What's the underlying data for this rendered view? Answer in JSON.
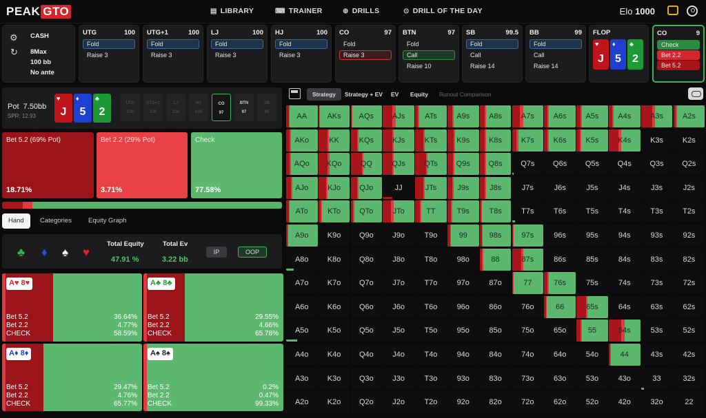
{
  "nav": {
    "logo_a": "PEAK",
    "logo_b": "GTO",
    "links": [
      "LIBRARY",
      "TRAINER",
      "DRILLS",
      "DRILL OF THE DAY"
    ],
    "elo_label": "Elo",
    "elo_value": "1000"
  },
  "game_info": {
    "type": "CASH",
    "players": "8Max",
    "stack": "100 bb",
    "ante": "No ante"
  },
  "positions": [
    {
      "name": "UTG",
      "stack": "100",
      "actions": [
        "Fold",
        "Raise 3"
      ],
      "selected": 0,
      "sel_style": "blue"
    },
    {
      "name": "UTG+1",
      "stack": "100",
      "actions": [
        "Fold",
        "Raise 3"
      ],
      "selected": 0,
      "sel_style": "blue"
    },
    {
      "name": "LJ",
      "stack": "100",
      "actions": [
        "Fold",
        "Raise 3"
      ],
      "selected": 0,
      "sel_style": "blue"
    },
    {
      "name": "HJ",
      "stack": "100",
      "actions": [
        "Fold",
        "Raise 3"
      ],
      "selected": 0,
      "sel_style": "blue"
    },
    {
      "name": "CO",
      "stack": "97",
      "actions": [
        "Fold",
        "Raise 3"
      ],
      "selected": 1,
      "sel_style": "red"
    },
    {
      "name": "BTN",
      "stack": "97",
      "actions": [
        "Fold",
        "Call",
        "Raise 10"
      ],
      "selected": 1,
      "sel_style": "green"
    },
    {
      "name": "SB",
      "stack": "99.5",
      "actions": [
        "Fold",
        "Call",
        "Raise 14"
      ],
      "selected": 0,
      "sel_style": "blue"
    },
    {
      "name": "BB",
      "stack": "99",
      "actions": [
        "Fold",
        "Call",
        "Raise 14"
      ],
      "selected": 0,
      "sel_style": "blue"
    }
  ],
  "flop": {
    "label": "FLOP",
    "cards": [
      {
        "rank": "J",
        "suit": "♥",
        "color": "#c0141c"
      },
      {
        "rank": "5",
        "suit": "♦",
        "color": "#1f3fd0"
      },
      {
        "rank": "2",
        "suit": "♣",
        "color": "#1d9a36"
      }
    ]
  },
  "co_active": {
    "name": "CO",
    "stack": "9",
    "actions": [
      "Check",
      "Bet 2.2",
      "Bet 5.2"
    ]
  },
  "pot": {
    "label": "Pot",
    "value": "7.50bb",
    "spr": "SPR: 12.93"
  },
  "seats": [
    {
      "name": "UTG",
      "stack": "100",
      "state": "dim"
    },
    {
      "name": "UTG+1",
      "stack": "100",
      "state": "dim"
    },
    {
      "name": "LJ",
      "stack": "100",
      "state": "dim"
    },
    {
      "name": "HJ",
      "stack": "100",
      "state": "dim"
    },
    {
      "name": "CO",
      "stack": "97",
      "state": "on"
    },
    {
      "name": "BTN",
      "stack": "97",
      "state": "mid"
    },
    {
      "name": "SB",
      "stack": "99",
      "state": "dim"
    }
  ],
  "actions": [
    {
      "label": "Bet 5.2 (69% Pot)",
      "pct": "18.71%",
      "color": "#9b1419",
      "frac": 0.1871
    },
    {
      "label": "Bet 2.2 (29% Pot)",
      "pct": "3.71%",
      "color": "#e84045",
      "frac": 0.0371
    },
    {
      "label": "Check",
      "pct": "77.58%",
      "color": "#5cb86e",
      "frac": 0.7758
    }
  ],
  "left_tabs": [
    "Hand",
    "Categories",
    "Equity Graph"
  ],
  "equity": {
    "eq_label": "Total Equity",
    "eq_value": "47.91 %",
    "ev_label": "Total Ev",
    "ev_value": "3.22 bb",
    "ip": "IP",
    "oop": "OOP"
  },
  "suits": [
    {
      "glyph": "♣",
      "color": "#2fb34a"
    },
    {
      "glyph": "♦",
      "color": "#2a4ee0"
    },
    {
      "glyph": "♠",
      "color": "#f2f2f2"
    },
    {
      "glyph": "♥",
      "color": "#d4262b"
    }
  ],
  "combos": [
    {
      "hand": "A♥ 8♥",
      "suitcolor": "#d4262b",
      "rows": [
        [
          "Bet 5.2",
          "36.64%"
        ],
        [
          "Bet 2.2",
          "4.77%"
        ],
        [
          "CHECK",
          "58.59%"
        ]
      ],
      "f1": 0.3664,
      "f2": 0.0477
    },
    {
      "hand": "A♣ 8♣",
      "suitcolor": "#1d9a36",
      "rows": [
        [
          "Bet 5.2",
          "29.55%"
        ],
        [
          "Bet 2.2",
          "4.66%"
        ],
        [
          "CHECK",
          "65.78%"
        ]
      ],
      "f1": 0.2955,
      "f2": 0.0466
    },
    {
      "hand": "A♦ 8♦",
      "suitcolor": "#1f3fd0",
      "rows": [
        [
          "Bet 5.2",
          "29.47%"
        ],
        [
          "Bet 2.2",
          "4.76%"
        ],
        [
          "CHECK",
          "65.77%"
        ]
      ],
      "f1": 0.2947,
      "f2": 0.0476
    },
    {
      "hand": "A♠ 8♠",
      "suitcolor": "#222222",
      "rows": [
        [
          "Bet 5.2",
          "0.2%"
        ],
        [
          "Bet 2.2",
          "0.47%"
        ],
        [
          "CHECK",
          "99.33%"
        ]
      ],
      "f1": 0.002,
      "f2": 0.0047
    }
  ],
  "right_tabs": [
    "Strategy",
    "Strategy + EV",
    "EV",
    "Equity",
    "Runout Comparison"
  ],
  "colors": {
    "bet_big": "#a8151b",
    "bet_small": "#e23a3f",
    "check": "#5cb86e"
  },
  "matrix": {
    "ranks": [
      "A",
      "K",
      "Q",
      "J",
      "T",
      "9",
      "8",
      "7",
      "6",
      "5",
      "4",
      "3",
      "2"
    ],
    "rows": [
      [
        [
          0.08,
          0.03,
          1
        ],
        [
          0.02,
          0.02,
          1
        ],
        [
          0.02,
          0.02,
          1
        ],
        [
          0.3,
          0.1,
          0.7
        ],
        [
          0.08,
          0.04,
          1
        ],
        [
          0.15,
          0.05,
          1
        ],
        [
          0.15,
          0.05,
          1
        ],
        [
          0.25,
          0.1,
          1
        ],
        [
          0.1,
          0.05,
          1
        ],
        [
          0.12,
          0.05,
          1
        ],
        [
          0.1,
          0.05,
          1
        ],
        [
          0.35,
          0.1,
          1
        ],
        [
          0.08,
          0.04,
          1
        ]
      ],
      [
        [
          0.1,
          0.05,
          1
        ],
        [
          0.28,
          0.05,
          1
        ],
        [
          0.2,
          0.05,
          1
        ],
        [
          0.3,
          0.05,
          1
        ],
        [
          0.25,
          0.05,
          1
        ],
        [
          0.2,
          0.05,
          1
        ],
        [
          0.15,
          0.05,
          1
        ],
        [
          0.15,
          0.05,
          1
        ],
        [
          0.1,
          0.05,
          1
        ],
        [
          0.1,
          0.05,
          1
        ],
        [
          0.3,
          0.1,
          1
        ],
        [
          0,
          0,
          0
        ],
        [
          0,
          0,
          0
        ]
      ],
      [
        [
          0.1,
          0.05,
          1
        ],
        [
          0.3,
          0.05,
          1
        ],
        [
          0.35,
          0.05,
          1
        ],
        [
          0.3,
          0.05,
          1
        ],
        [
          0.35,
          0.05,
          1
        ],
        [
          0.18,
          0.05,
          1
        ],
        [
          0.15,
          0.05,
          1
        ],
        [
          0,
          0,
          0.05
        ],
        [
          0,
          0,
          0
        ],
        [
          0,
          0,
          0
        ],
        [
          0,
          0,
          0
        ],
        [
          0,
          0,
          0
        ],
        [
          0,
          0,
          0
        ]
      ],
      [
        [
          0.15,
          0.05,
          1
        ],
        [
          0.25,
          0.05,
          1
        ],
        [
          0.2,
          0.05,
          1
        ],
        [
          0.4,
          0.1,
          0.3
        ],
        [
          0.25,
          0.05,
          1
        ],
        [
          0.15,
          0.05,
          1
        ],
        [
          0.15,
          0.05,
          1
        ],
        [
          0,
          0,
          0
        ],
        [
          0,
          0,
          0
        ],
        [
          0,
          0,
          0
        ],
        [
          0,
          0,
          0
        ],
        [
          0,
          0,
          0
        ],
        [
          0,
          0,
          0
        ]
      ],
      [
        [
          0.08,
          0.04,
          1
        ],
        [
          0.08,
          0.04,
          1
        ],
        [
          0.08,
          0.04,
          1
        ],
        [
          0.25,
          0.1,
          0.5
        ],
        [
          0.15,
          0.05,
          1
        ],
        [
          0.1,
          0.05,
          1
        ],
        [
          0.05,
          0.03,
          1
        ],
        [
          0,
          0,
          0.1
        ],
        [
          0,
          0,
          0
        ],
        [
          0,
          0,
          0
        ],
        [
          0,
          0,
          0
        ],
        [
          0,
          0,
          0
        ],
        [
          0,
          0,
          0
        ]
      ],
      [
        [
          0.05,
          0.02,
          1
        ],
        [
          0,
          0,
          0
        ],
        [
          0,
          0,
          0
        ],
        [
          0,
          0,
          0
        ],
        [
          0,
          0,
          0
        ],
        [
          0.08,
          0.04,
          1
        ],
        [
          0.06,
          0.03,
          1
        ],
        [
          0.02,
          0.02,
          1
        ],
        [
          0,
          0,
          0
        ],
        [
          0,
          0,
          0
        ],
        [
          0,
          0,
          0
        ],
        [
          0,
          0,
          0
        ],
        [
          0,
          0,
          0
        ]
      ],
      [
        [
          0,
          0,
          0.25
        ],
        [
          0,
          0,
          0
        ],
        [
          0,
          0,
          0
        ],
        [
          0,
          0,
          0
        ],
        [
          0,
          0,
          0
        ],
        [
          0,
          0,
          0
        ],
        [
          0.08,
          0.04,
          1
        ],
        [
          0.3,
          0.05,
          0.9
        ],
        [
          0,
          0,
          0
        ],
        [
          0,
          0,
          0
        ],
        [
          0,
          0,
          0
        ],
        [
          0,
          0,
          0
        ],
        [
          0,
          0,
          0
        ]
      ],
      [
        [
          0,
          0,
          0
        ],
        [
          0,
          0,
          0
        ],
        [
          0,
          0,
          0
        ],
        [
          0,
          0,
          0
        ],
        [
          0,
          0,
          0
        ],
        [
          0,
          0,
          0
        ],
        [
          0,
          0,
          0
        ],
        [
          0.03,
          0.02,
          1
        ],
        [
          0.1,
          0.05,
          0.8
        ],
        [
          0,
          0,
          0
        ],
        [
          0,
          0,
          0
        ],
        [
          0,
          0,
          0
        ],
        [
          0,
          0,
          0
        ]
      ],
      [
        [
          0,
          0,
          0
        ],
        [
          0,
          0,
          0
        ],
        [
          0,
          0,
          0
        ],
        [
          0,
          0,
          0
        ],
        [
          0,
          0,
          0
        ],
        [
          0,
          0,
          0
        ],
        [
          0,
          0,
          0
        ],
        [
          0,
          0,
          0
        ],
        [
          0.05,
          0.02,
          1
        ],
        [
          0.3,
          0.05,
          1
        ],
        [
          0,
          0,
          0
        ],
        [
          0,
          0,
          0
        ],
        [
          0,
          0,
          0
        ]
      ],
      [
        [
          0,
          0,
          0.35
        ],
        [
          0,
          0,
          0
        ],
        [
          0,
          0,
          0
        ],
        [
          0,
          0,
          0
        ],
        [
          0,
          0,
          0
        ],
        [
          0,
          0,
          0
        ],
        [
          0,
          0,
          0
        ],
        [
          0,
          0,
          0
        ],
        [
          0,
          0,
          0
        ],
        [
          0.12,
          0.05,
          1
        ],
        [
          0.4,
          0.1,
          0.5
        ],
        [
          0,
          0,
          0
        ],
        [
          0,
          0,
          0
        ]
      ],
      [
        [
          0,
          0,
          0
        ],
        [
          0,
          0,
          0
        ],
        [
          0,
          0,
          0
        ],
        [
          0,
          0,
          0
        ],
        [
          0,
          0,
          0
        ],
        [
          0,
          0,
          0
        ],
        [
          0,
          0,
          0
        ],
        [
          0,
          0,
          0
        ],
        [
          0,
          0,
          0
        ],
        [
          0,
          0,
          0
        ],
        [
          0.04,
          0.02,
          1
        ],
        [
          0,
          0,
          0
        ],
        [
          0,
          0,
          0
        ]
      ],
      [
        [
          0,
          0,
          0
        ],
        [
          0,
          0,
          0
        ],
        [
          0,
          0,
          0
        ],
        [
          0,
          0,
          0
        ],
        [
          0,
          0,
          0
        ],
        [
          0,
          0,
          0
        ],
        [
          0,
          0,
          0
        ],
        [
          0,
          0,
          0
        ],
        [
          0,
          0,
          0
        ],
        [
          0,
          0,
          0
        ],
        [
          0,
          0,
          0
        ],
        [
          0,
          0,
          0.1
        ],
        [
          0,
          0,
          0
        ]
      ],
      [
        [
          0,
          0,
          0
        ],
        [
          0,
          0,
          0
        ],
        [
          0,
          0,
          0
        ],
        [
          0,
          0,
          0
        ],
        [
          0,
          0,
          0
        ],
        [
          0,
          0,
          0
        ],
        [
          0,
          0,
          0
        ],
        [
          0,
          0,
          0
        ],
        [
          0,
          0,
          0
        ],
        [
          0,
          0,
          0
        ],
        [
          0,
          0,
          0
        ],
        [
          0,
          0,
          0
        ],
        [
          0,
          0,
          0
        ]
      ]
    ]
  }
}
